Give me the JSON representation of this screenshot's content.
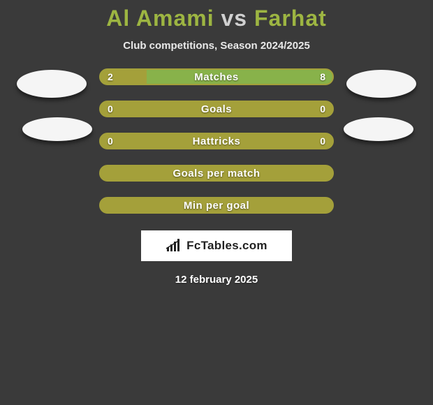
{
  "title": {
    "player1": "Al Amami",
    "vs": "vs",
    "player2": "Farhat"
  },
  "subtitle": "Club competitions, Season 2024/2025",
  "colors": {
    "player1": "#a4a03a",
    "player2": "#88b24a",
    "bar_border": "#a4a03a",
    "bar_bg_right": "#88b24a",
    "bar_bg_left": "#a4a03a",
    "background": "#3a3a3a",
    "title_accent": "#9db542"
  },
  "bars": [
    {
      "label": "Matches",
      "left_val": "2",
      "right_val": "8",
      "left_pct": 20,
      "left_color": "#a4a03a",
      "right_color": "#88b24a",
      "show_vals": true
    },
    {
      "label": "Goals",
      "left_val": "0",
      "right_val": "0",
      "left_pct": 100,
      "left_color": "#a4a03a",
      "right_color": "#a4a03a",
      "show_vals": true
    },
    {
      "label": "Hattricks",
      "left_val": "0",
      "right_val": "0",
      "left_pct": 100,
      "left_color": "#a4a03a",
      "right_color": "#a4a03a",
      "show_vals": true
    },
    {
      "label": "Goals per match",
      "left_val": "",
      "right_val": "",
      "left_pct": 100,
      "left_color": "#a4a03a",
      "right_color": "#a4a03a",
      "show_vals": false
    },
    {
      "label": "Min per goal",
      "left_val": "",
      "right_val": "",
      "left_pct": 100,
      "left_color": "#a4a03a",
      "right_color": "#a4a03a",
      "show_vals": false
    }
  ],
  "brand": "FcTables.com",
  "date": "12 february 2025"
}
